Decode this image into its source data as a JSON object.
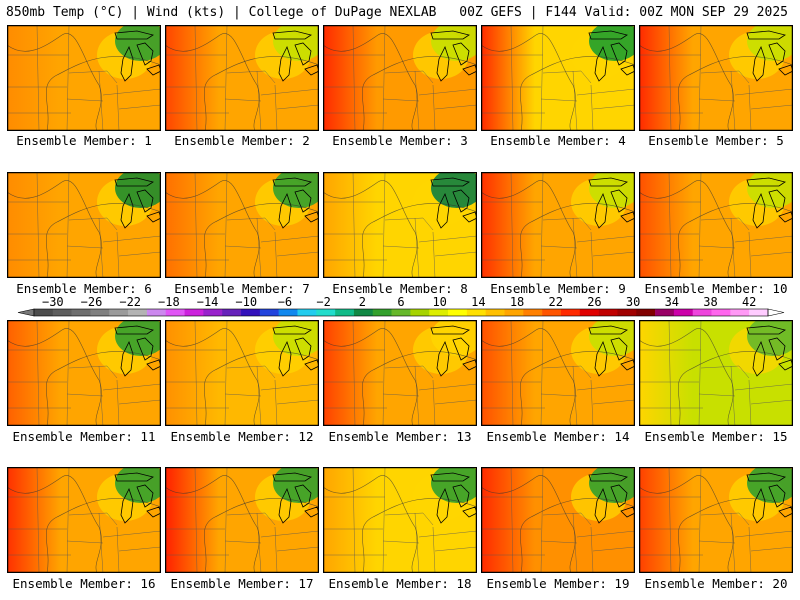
{
  "header": {
    "left": "850mb Temp (°C) | Wind (kts) | College of DuPage NEXLAB",
    "right": "00Z GEFS | F144 Valid: 00Z MON SEP 29 2025"
  },
  "members": [
    {
      "label": "Ensemble Member: 1",
      "dominant": "#ffa500",
      "west": "#ff8c00",
      "northeast": "#33a02c"
    },
    {
      "label": "Ensemble Member: 2",
      "dominant": "#ffa500",
      "west": "#ff4500",
      "northeast": "#c8e000"
    },
    {
      "label": "Ensemble Member: 3",
      "dominant": "#ff9a00",
      "west": "#ff2a00",
      "northeast": "#c8e000"
    },
    {
      "label": "Ensemble Member: 4",
      "dominant": "#ffd500",
      "west": "#ff2a00",
      "northeast": "#1fa02c"
    },
    {
      "label": "Ensemble Member: 5",
      "dominant": "#ffa500",
      "west": "#ff2a00",
      "northeast": "#c8e000"
    },
    {
      "label": "Ensemble Member: 6",
      "dominant": "#ffa500",
      "west": "#ff8c00",
      "northeast": "#1f8c2c"
    },
    {
      "label": "Ensemble Member: 7",
      "dominant": "#ffa500",
      "west": "#ff7000",
      "northeast": "#33a02c"
    },
    {
      "label": "Ensemble Member: 8",
      "dominant": "#ffd500",
      "west": "#ffa500",
      "northeast": "#0f8040"
    },
    {
      "label": "Ensemble Member: 9",
      "dominant": "#ffa500",
      "west": "#ff3000",
      "northeast": "#c8e000"
    },
    {
      "label": "Ensemble Member: 10",
      "dominant": "#ffa500",
      "west": "#ff5000",
      "northeast": "#c8e000"
    },
    {
      "label": "Ensemble Member: 11",
      "dominant": "#ffa500",
      "west": "#ff6000",
      "northeast": "#33a02c"
    },
    {
      "label": "Ensemble Member: 12",
      "dominant": "#ffb800",
      "west": "#ff9000",
      "northeast": "#c8e000"
    },
    {
      "label": "Ensemble Member: 13",
      "dominant": "#ffa500",
      "west": "#ff4000",
      "northeast": "#ffd500"
    },
    {
      "label": "Ensemble Member: 14",
      "dominant": "#ffa500",
      "west": "#ff5000",
      "northeast": "#c8e000"
    },
    {
      "label": "Ensemble Member: 15",
      "dominant": "#c8e000",
      "west": "#ffd500",
      "northeast": "#66b82a"
    },
    {
      "label": "Ensemble Member: 16",
      "dominant": "#ffa500",
      "west": "#ff3000",
      "northeast": "#33a02c"
    },
    {
      "label": "Ensemble Member: 17",
      "dominant": "#ffa500",
      "west": "#ff2000",
      "northeast": "#33a02c"
    },
    {
      "label": "Ensemble Member: 18",
      "dominant": "#ffd500",
      "west": "#ffa500",
      "northeast": "#33a02c"
    },
    {
      "label": "Ensemble Member: 19",
      "dominant": "#ff9000",
      "west": "#ff2a00",
      "northeast": "#33a02c"
    },
    {
      "label": "Ensemble Member: 20",
      "dominant": "#ffa500",
      "west": "#ff4000",
      "northeast": "#33a02c"
    }
  ],
  "colorbar": {
    "ticks": [
      "−30",
      "−26",
      "−22",
      "−18",
      "−14",
      "−10",
      "−6",
      "−2",
      "2",
      "6",
      "10",
      "14",
      "18",
      "22",
      "26",
      "30",
      "34",
      "38",
      "42"
    ],
    "colors": [
      "#4d4d4d",
      "#5e5e5e",
      "#6e6e6e",
      "#808080",
      "#9b9b9b",
      "#b3b3b3",
      "#cc88ee",
      "#e055f5",
      "#cc22dd",
      "#9922cc",
      "#6622bb",
      "#3311bb",
      "#2244dd",
      "#1188ee",
      "#22ccee",
      "#22ddcc",
      "#11bb88",
      "#118844",
      "#33a02c",
      "#66b82a",
      "#a6d300",
      "#ddee00",
      "#ffff00",
      "#ffe000",
      "#ffc000",
      "#ffa500",
      "#ff8000",
      "#ff5500",
      "#ff2a00",
      "#e00000",
      "#c00000",
      "#a00000",
      "#800000",
      "#990066",
      "#cc00aa",
      "#ee44dd",
      "#ff66ee",
      "#ff99f5",
      "#ffccff"
    ]
  }
}
